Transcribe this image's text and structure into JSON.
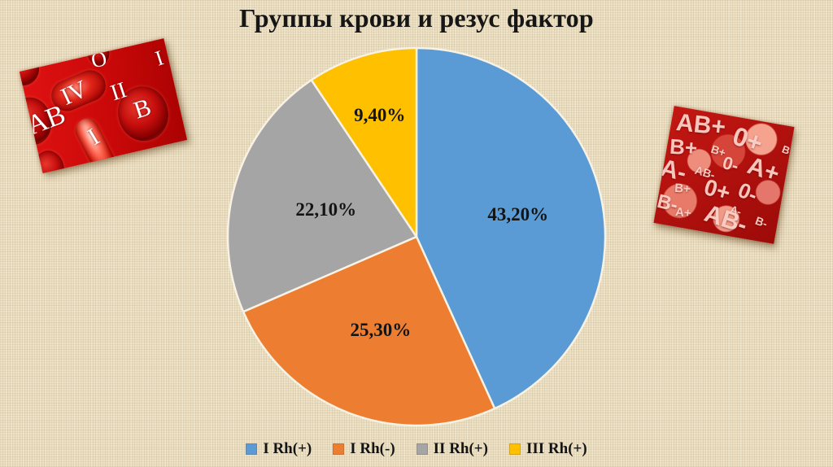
{
  "slide": {
    "title": "Группы крови и резус фактор"
  },
  "chart_data": {
    "type": "pie",
    "title": "Группы крови и резус фактор",
    "categories": [
      "I Rh(+)",
      "I Rh(-)",
      "II Rh(+)",
      "III Rh(+)"
    ],
    "values": [
      43.2,
      25.3,
      22.1,
      9.4
    ],
    "data_labels": [
      "43,20%",
      "25,30%",
      "22,10%",
      "9,40%"
    ],
    "colors": [
      "#5b9bd5",
      "#ed7d31",
      "#a5a5a5",
      "#ffc000"
    ],
    "start_angle_deg": 0,
    "direction": "clockwise",
    "legend_position": "bottom",
    "slice_border_color": "#f7f2e4",
    "label_color": "#141414"
  },
  "decorations": {
    "blood_cells_photo": {
      "labels": [
        "AB",
        "IV",
        "O",
        "II",
        "B",
        "I",
        "I"
      ]
    },
    "blood_types_photo": {
      "texts": [
        "AB+",
        "0+",
        "B",
        "B+",
        "B+",
        "0-",
        "A+",
        "A-",
        "AB-",
        "B+",
        "0+",
        "0-",
        "A-",
        "B-",
        "A+",
        "AB-",
        "B-"
      ]
    }
  },
  "background_color": "#eee2c6"
}
